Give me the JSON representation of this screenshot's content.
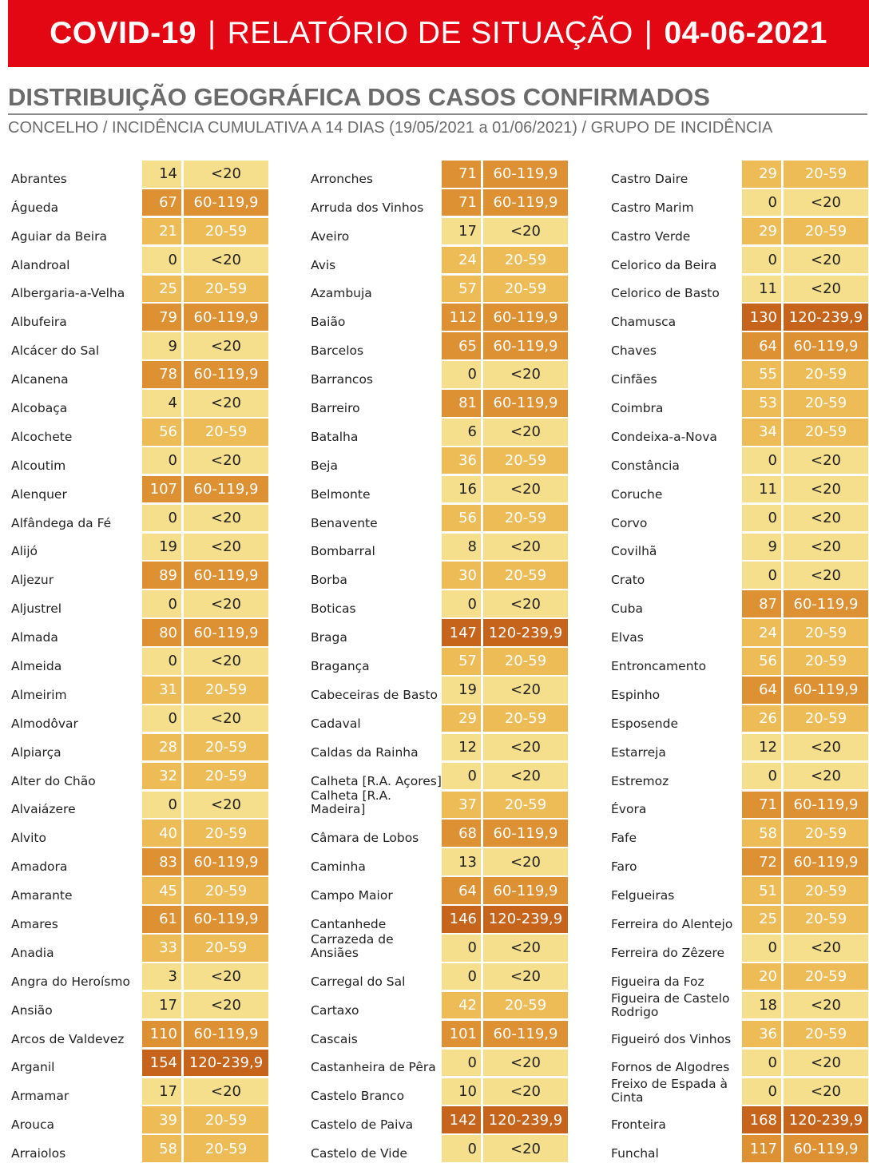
{
  "header": {
    "title_left": "COVID-19",
    "separator": "|",
    "title_mid": "RELATÓRIO DE SITUAÇÃO",
    "title_date": "04-06-2021"
  },
  "section": {
    "title": "DISTRIBUIÇÃO GEOGRÁFICA DOS CASOS CONFIRMADOS",
    "subtitle": "CONCELHO / INCIDÊNCIA CUMULATIVA A 14 DIAS (19/05/2021 a 01/06/2021) / GRUPO DE INCIDÊNCIA"
  },
  "colors": {
    "g1": "#f6df8c",
    "g2": "#eebc57",
    "g3": "#de9132",
    "g4": "#c7641c"
  },
  "columns": [
    [
      [
        "Abrantes",
        "14",
        "<20"
      ],
      [
        "Águeda",
        "67",
        "60-119,9"
      ],
      [
        "Aguiar da Beira",
        "21",
        "20-59"
      ],
      [
        "Alandroal",
        "0",
        "<20"
      ],
      [
        "Albergaria-a-Velha",
        "25",
        "20-59"
      ],
      [
        "Albufeira",
        "79",
        "60-119,9"
      ],
      [
        "Alcácer do Sal",
        "9",
        "<20"
      ],
      [
        "Alcanena",
        "78",
        "60-119,9"
      ],
      [
        "Alcobaça",
        "4",
        "<20"
      ],
      [
        "Alcochete",
        "56",
        "20-59"
      ],
      [
        "Alcoutim",
        "0",
        "<20"
      ],
      [
        "Alenquer",
        "107",
        "60-119,9"
      ],
      [
        "Alfândega da Fé",
        "0",
        "<20"
      ],
      [
        "Alijó",
        "19",
        "<20"
      ],
      [
        "Aljezur",
        "89",
        "60-119,9"
      ],
      [
        "Aljustrel",
        "0",
        "<20"
      ],
      [
        "Almada",
        "80",
        "60-119,9"
      ],
      [
        "Almeida",
        "0",
        "<20"
      ],
      [
        "Almeirim",
        "31",
        "20-59"
      ],
      [
        "Almodôvar",
        "0",
        "<20"
      ],
      [
        "Alpiarça",
        "28",
        "20-59"
      ],
      [
        "Alter do Chão",
        "32",
        "20-59"
      ],
      [
        "Alvaiázere",
        "0",
        "<20"
      ],
      [
        "Alvito",
        "40",
        "20-59"
      ],
      [
        "Amadora",
        "83",
        "60-119,9"
      ],
      [
        "Amarante",
        "45",
        "20-59"
      ],
      [
        "Amares",
        "61",
        "60-119,9"
      ],
      [
        "Anadia",
        "33",
        "20-59"
      ],
      [
        "Angra do Heroísmo",
        "3",
        "<20"
      ],
      [
        "Ansião",
        "17",
        "<20"
      ],
      [
        "Arcos de Valdevez",
        "110",
        "60-119,9"
      ],
      [
        "Arganil",
        "154",
        "120-239,9"
      ],
      [
        "Armamar",
        "17",
        "<20"
      ],
      [
        "Arouca",
        "39",
        "20-59"
      ],
      [
        "Arraiolos",
        "58",
        "20-59"
      ]
    ],
    [
      [
        "Arronches",
        "71",
        "60-119,9"
      ],
      [
        "Arruda dos Vinhos",
        "71",
        "60-119,9"
      ],
      [
        "Aveiro",
        "17",
        "<20"
      ],
      [
        "Avis",
        "24",
        "20-59"
      ],
      [
        "Azambuja",
        "57",
        "20-59"
      ],
      [
        "Baião",
        "112",
        "60-119,9"
      ],
      [
        "Barcelos",
        "65",
        "60-119,9"
      ],
      [
        "Barrancos",
        "0",
        "<20"
      ],
      [
        "Barreiro",
        "81",
        "60-119,9"
      ],
      [
        "Batalha",
        "6",
        "<20"
      ],
      [
        "Beja",
        "36",
        "20-59"
      ],
      [
        "Belmonte",
        "16",
        "<20"
      ],
      [
        "Benavente",
        "56",
        "20-59"
      ],
      [
        "Bombarral",
        "8",
        "<20"
      ],
      [
        "Borba",
        "30",
        "20-59"
      ],
      [
        "Boticas",
        "0",
        "<20"
      ],
      [
        "Braga",
        "147",
        "120-239,9"
      ],
      [
        "Bragança",
        "57",
        "20-59"
      ],
      [
        "Cabeceiras de Basto",
        "19",
        "<20"
      ],
      [
        "Cadaval",
        "29",
        "20-59"
      ],
      [
        "Caldas da Rainha",
        "12",
        "<20"
      ],
      [
        "Calheta [R.A. Açores]",
        "0",
        "<20"
      ],
      [
        "Calheta [R.A. Madeira]",
        "37",
        "20-59"
      ],
      [
        "Câmara de Lobos",
        "68",
        "60-119,9"
      ],
      [
        "Caminha",
        "13",
        "<20"
      ],
      [
        "Campo Maior",
        "64",
        "60-119,9"
      ],
      [
        "Cantanhede",
        "146",
        "120-239,9"
      ],
      [
        "Carrazeda de Ansiães",
        "0",
        "<20"
      ],
      [
        "Carregal do Sal",
        "0",
        "<20"
      ],
      [
        "Cartaxo",
        "42",
        "20-59"
      ],
      [
        "Cascais",
        "101",
        "60-119,9"
      ],
      [
        "Castanheira de Pêra",
        "0",
        "<20"
      ],
      [
        "Castelo Branco",
        "10",
        "<20"
      ],
      [
        "Castelo de Paiva",
        "142",
        "120-239,9"
      ],
      [
        "Castelo de Vide",
        "0",
        "<20"
      ]
    ],
    [
      [
        "Castro Daire",
        "29",
        "20-59"
      ],
      [
        "Castro Marim",
        "0",
        "<20"
      ],
      [
        "Castro Verde",
        "29",
        "20-59"
      ],
      [
        "Celorico da Beira",
        "0",
        "<20"
      ],
      [
        "Celorico de Basto",
        "11",
        "<20"
      ],
      [
        "Chamusca",
        "130",
        "120-239,9"
      ],
      [
        "Chaves",
        "64",
        "60-119,9"
      ],
      [
        "Cinfães",
        "55",
        "20-59"
      ],
      [
        "Coimbra",
        "53",
        "20-59"
      ],
      [
        "Condeixa-a-Nova",
        "34",
        "20-59"
      ],
      [
        "Constância",
        "0",
        "<20"
      ],
      [
        "Coruche",
        "11",
        "<20"
      ],
      [
        "Corvo",
        "0",
        "<20"
      ],
      [
        "Covilhã",
        "9",
        "<20"
      ],
      [
        "Crato",
        "0",
        "<20"
      ],
      [
        "Cuba",
        "87",
        "60-119,9"
      ],
      [
        "Elvas",
        "24",
        "20-59"
      ],
      [
        "Entroncamento",
        "56",
        "20-59"
      ],
      [
        "Espinho",
        "64",
        "60-119,9"
      ],
      [
        "Esposende",
        "26",
        "20-59"
      ],
      [
        "Estarreja",
        "12",
        "<20"
      ],
      [
        "Estremoz",
        "0",
        "<20"
      ],
      [
        "Évora",
        "71",
        "60-119,9"
      ],
      [
        "Fafe",
        "58",
        "20-59"
      ],
      [
        "Faro",
        "72",
        "60-119,9"
      ],
      [
        "Felgueiras",
        "51",
        "20-59"
      ],
      [
        "Ferreira do Alentejo",
        "25",
        "20-59"
      ],
      [
        "Ferreira do Zêzere",
        "0",
        "<20"
      ],
      [
        "Figueira da Foz",
        "20",
        "20-59"
      ],
      [
        "Figueira de Castelo Rodrigo",
        "18",
        "<20"
      ],
      [
        "Figueiró dos Vinhos",
        "36",
        "20-59"
      ],
      [
        "Fornos de Algodres",
        "0",
        "<20"
      ],
      [
        "Freixo de Espada à Cinta",
        "0",
        "<20"
      ],
      [
        "Fronteira",
        "168",
        "120-239,9"
      ],
      [
        "Funchal",
        "117",
        "60-119,9"
      ]
    ]
  ]
}
